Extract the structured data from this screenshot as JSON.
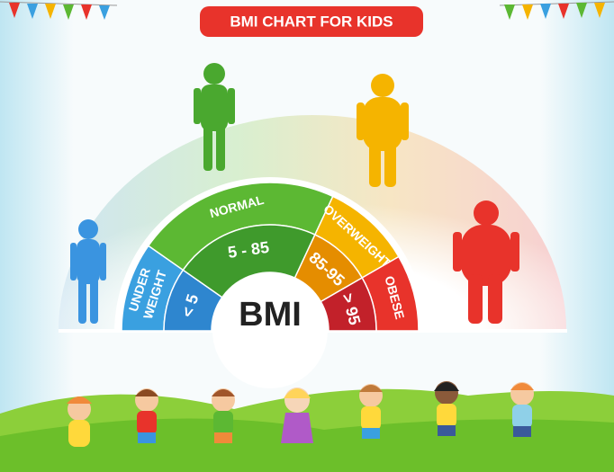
{
  "header": {
    "title": "BMI CHART FOR KIDS"
  },
  "gauge": {
    "center_label": "BMI",
    "segments": [
      {
        "label": [
          "UNDER",
          "WEIGHT"
        ],
        "range": "< 5"
      },
      {
        "label": [
          "NORMAL"
        ],
        "range": "5 - 85"
      },
      {
        "label": [
          "OVERWEIGHT"
        ],
        "range": "85-95"
      },
      {
        "label": [
          "OBESE"
        ],
        "range": "> 95"
      }
    ]
  }
}
